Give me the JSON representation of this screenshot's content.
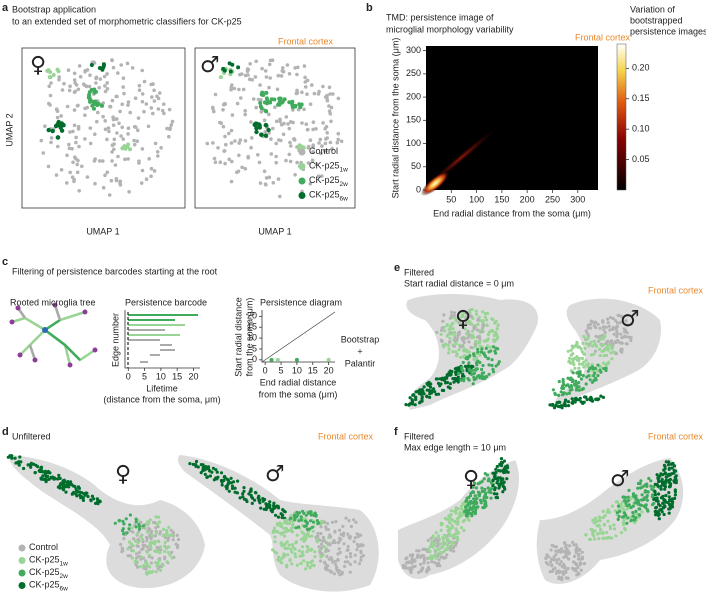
{
  "panel_a": {
    "label": "a",
    "title": [
      "Bootstrap application",
      "to an extended set of morphometric classifiers for CK-p25"
    ],
    "region": "Frontal cortex",
    "y_label": "UMAP 2",
    "x_label": "UMAP 1",
    "female": "♀",
    "male": "♂",
    "legend": [
      {
        "name": "Control",
        "color": "#b3b3b3"
      },
      {
        "name": "CK-p25",
        "sub": "1w",
        "color": "#98d594"
      },
      {
        "name": "CK-p25",
        "sub": "2w",
        "color": "#41ab5d"
      },
      {
        "name": "CK-p25",
        "sub": "6w",
        "color": "#006d2c"
      }
    ]
  },
  "panel_b": {
    "label": "b",
    "title": [
      "TMD: persistence image of",
      "microglial morphology variability"
    ],
    "region": "Frontal cortex",
    "x_label": "End radial distance from the soma (μm)",
    "y_label": "Start radial distance from the soma (μm)",
    "xlim": [
      0,
      340
    ],
    "ylim": [
      0,
      310
    ],
    "xticks": [
      50,
      100,
      150,
      200,
      250,
      300
    ],
    "yticks": [
      0,
      50,
      100,
      150,
      200,
      250,
      300
    ],
    "colorbar": {
      "label": [
        "Variation of",
        "bootstrapped",
        "persistence images"
      ],
      "lim": [
        0,
        0.24
      ],
      "ticks": [
        0.05,
        {
          "value": 0.1,
          "label": "0.10"
        },
        0.15,
        {
          "value": 0.2,
          "label": "0.20"
        }
      ]
    }
  },
  "panel_c": {
    "label": "c",
    "title": "Filtering of persistence barcodes starting at the root",
    "tree_title": "Rooted microglia tree",
    "barcode": {
      "title": "Persistence barcode",
      "y_label": "Edge number",
      "x_label": [
        "Lifetime",
        "(distance from the soma, μm)"
      ],
      "xlim": [
        -1,
        22
      ],
      "xticks": [
        0,
        5,
        10,
        15,
        20
      ]
    },
    "diagram": {
      "title": "Persistence diagram",
      "y_label": [
        "Start radial distance",
        "from the soma (μm)"
      ],
      "x_label": [
        "End radial distance",
        "from the soma (μm)"
      ],
      "xlim": [
        -1,
        22
      ],
      "ylim": [
        -1,
        22
      ],
      "xticks": [
        0,
        5,
        10,
        15,
        20
      ],
      "yticks": [
        0,
        5,
        10,
        15,
        20
      ],
      "x": [
        2,
        4,
        10,
        20
      ],
      "y": [
        0,
        0,
        0,
        0
      ]
    },
    "method": [
      "Bootstrap",
      "+",
      "Palantir"
    ]
  },
  "panel_d": {
    "label": "d",
    "title": "Unfiltered",
    "region": "Frontal cortex",
    "female": "♀",
    "male": "♂",
    "legend": [
      {
        "name": "Control"
      },
      {
        "name": "CK-p25",
        "sub": "1w"
      },
      {
        "name": "CK-p25",
        "sub": "2w"
      },
      {
        "name": "CK-p25",
        "sub": "6w"
      }
    ]
  },
  "panel_e": {
    "label": "e",
    "title": [
      "Filtered",
      "Start radial distance = 0 μm"
    ],
    "region": "Frontal cortex",
    "female": "♀",
    "male": "♂"
  },
  "panel_f": {
    "label": "f",
    "title": [
      "Filtered",
      "Max edge length = 10 μm"
    ],
    "region": "Frontal cortex",
    "female": "♀",
    "male": "♂"
  }
}
